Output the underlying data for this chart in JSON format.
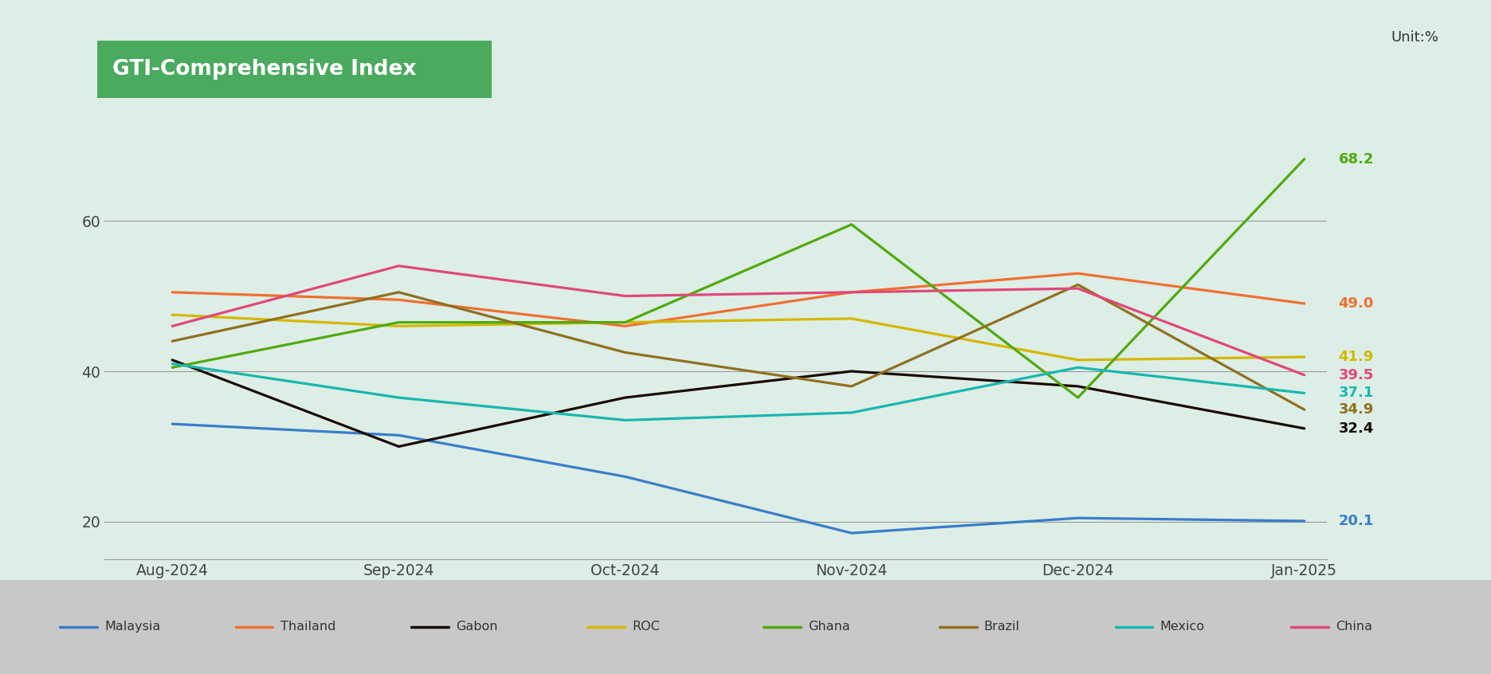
{
  "title": "GTI-Comprehensive Index",
  "unit": "Unit:%",
  "background_color": "#ddeee6",
  "plot_bg_color": "#ddeee6",
  "title_bg_color": "#4aaa5e",
  "title_text_color": "#ffffff",
  "legend_bg_color": "#c8c8c8",
  "x_labels": [
    "Aug-2024",
    "Sep-2024",
    "Oct-2024",
    "Nov-2024",
    "Dec-2024",
    "Jan-2025"
  ],
  "ylim": [
    15,
    75
  ],
  "yticks": [
    20,
    40,
    60
  ],
  "series": [
    {
      "name": "Malaysia",
      "color": "#3a7dc9",
      "values": [
        33.0,
        31.5,
        26.0,
        18.5,
        20.5,
        20.1
      ],
      "end_label": "20.1"
    },
    {
      "name": "Thailand",
      "color": "#f07030",
      "values": [
        50.5,
        49.5,
        46.0,
        50.5,
        53.0,
        49.0
      ],
      "end_label": "49.0"
    },
    {
      "name": "Gabon",
      "color": "#1a0a00",
      "values": [
        41.5,
        30.0,
        36.5,
        40.0,
        38.0,
        32.4
      ],
      "end_label": "32.4"
    },
    {
      "name": "ROC",
      "color": "#d4b800",
      "values": [
        47.5,
        46.0,
        46.5,
        47.0,
        41.5,
        41.9
      ],
      "end_label": "41.9"
    },
    {
      "name": "Ghana",
      "color": "#50aa10",
      "values": [
        40.5,
        46.5,
        46.5,
        59.5,
        36.5,
        68.2
      ],
      "end_label": "68.2"
    },
    {
      "name": "Brazil",
      "color": "#907020",
      "values": [
        44.0,
        50.5,
        42.5,
        38.0,
        51.5,
        34.9
      ],
      "end_label": "34.9"
    },
    {
      "name": "Mexico",
      "color": "#18b8b0",
      "values": [
        41.0,
        36.5,
        33.5,
        34.5,
        40.5,
        37.1
      ],
      "end_label": "37.1"
    },
    {
      "name": "China",
      "color": "#e04878",
      "values": [
        46.0,
        54.0,
        50.0,
        50.5,
        51.0,
        39.5
      ],
      "end_label": "39.5"
    }
  ],
  "legend_items": [
    {
      "name": "Malaysia",
      "color": "#3a7dc9"
    },
    {
      "name": "Thailand",
      "color": "#f07030"
    },
    {
      "name": "Gabon",
      "color": "#1a0a00"
    },
    {
      "name": "ROC",
      "color": "#d4b800"
    },
    {
      "name": "Ghana",
      "color": "#50aa10"
    },
    {
      "name": "Brazil",
      "color": "#907020"
    },
    {
      "name": "Mexico",
      "color": "#18b8b0"
    },
    {
      "name": "China",
      "color": "#e04878"
    }
  ]
}
